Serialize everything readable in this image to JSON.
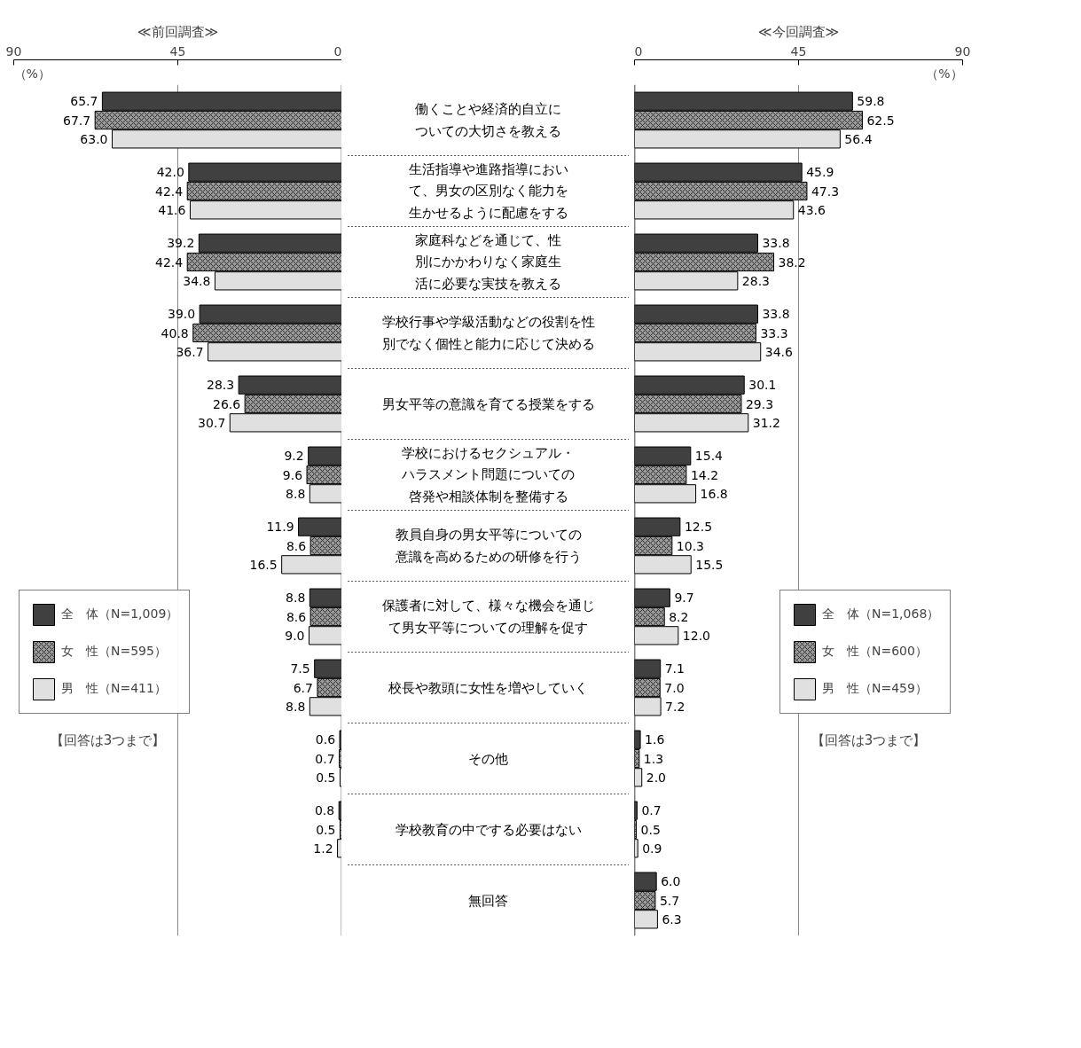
{
  "chart_data": [
    {
      "type": "bar",
      "orientation": "horizontal",
      "title": "≪前回調査≫",
      "xlabel": "（%）",
      "categories": [
        "働くことや経済的自立についての大切さを教える",
        "生活指導や進路指導において、男女の区別なく能力を生かせるように配慮をする",
        "家庭科などを通じて、性別にかかわりなく家庭生活に必要な実技を教える",
        "学校行事や学級活動などの役割を性別でなく個性と能力に応じて決める",
        "男女平等の意識を育てる授業をする",
        "学校におけるセクシュアル・ハラスメント問題についての啓発や相談体制を整備する",
        "教員自身の男女平等についての意識を高めるための研修を行う",
        "保護者に対して、様々な機会を通じて男女平等についての理解を促す",
        "校長や教頭に女性を増やしていく",
        "その他",
        "学校教育の中でする必要はない",
        "無回答"
      ],
      "series": [
        {
          "name": "全　体（N=1,009）",
          "color": "#404040",
          "values": [
            65.7,
            42.0,
            39.2,
            39.0,
            28.3,
            9.2,
            11.9,
            8.8,
            7.5,
            0.6,
            0.8,
            null
          ],
          "value_labels": [
            "65.7",
            "42.0",
            "39.2",
            "39.0",
            "28.3",
            "9.2",
            "11.9",
            "8.8",
            "7.5",
            "0.6",
            "0.8",
            null
          ]
        },
        {
          "name": "女　性（N=595）",
          "color": "#999999",
          "values": [
            67.7,
            42.4,
            42.4,
            40.8,
            26.6,
            9.6,
            8.6,
            8.6,
            6.7,
            0.7,
            0.5,
            null
          ],
          "value_labels": [
            "67.7",
            "42.4",
            "42.4",
            "40.8",
            "26.6",
            "9.6",
            "8.6",
            "8.6",
            "6.7",
            "0.7",
            "0.5",
            null
          ]
        },
        {
          "name": "男　性（N=411）",
          "color": "#e0e0e0",
          "values": [
            63.0,
            41.6,
            34.8,
            36.7,
            30.7,
            8.8,
            16.5,
            9.0,
            8.8,
            0.5,
            1.2,
            null
          ],
          "value_labels": [
            "63.0",
            "41.6",
            "34.8",
            "36.7",
            "30.7",
            "8.8",
            "16.5",
            "9.0",
            "8.8",
            "0.5",
            "1.2",
            null
          ]
        }
      ],
      "xlim": [
        90,
        0
      ],
      "xticks": [
        90,
        45,
        0
      ],
      "grid": "x",
      "legend": "left",
      "annotations": [
        "【回答は3つまで】"
      ]
    },
    {
      "type": "bar",
      "orientation": "horizontal",
      "title": "≪今回調査≫",
      "xlabel": "（%）",
      "categories": [
        "働くことや経済的自立についての大切さを教える",
        "生活指導や進路指導において、男女の区別なく能力を生かせるように配慮をする",
        "家庭科などを通じて、性別にかかわりなく家庭生活に必要な実技を教える",
        "学校行事や学級活動などの役割を性別でなく個性と能力に応じて決める",
        "男女平等の意識を育てる授業をする",
        "学校におけるセクシュアル・ハラスメント問題についての啓発や相談体制を整備する",
        "教員自身の男女平等についての意識を高めるための研修を行う",
        "保護者に対して、様々な機会を通じて男女平等についての理解を促す",
        "校長や教頭に女性を増やしていく",
        "その他",
        "学校教育の中でする必要はない",
        "無回答"
      ],
      "series": [
        {
          "name": "全　体（N=1,068）",
          "color": "#404040",
          "values": [
            59.8,
            45.9,
            33.8,
            33.8,
            30.1,
            15.4,
            12.5,
            9.7,
            7.1,
            1.6,
            0.7,
            6.0
          ],
          "value_labels": [
            "59.8",
            "45.9",
            "33.8",
            "33.8",
            "30.1",
            "15.4",
            "12.5",
            "9.7",
            "7.1",
            "1.6",
            "0.7",
            "6.0"
          ]
        },
        {
          "name": "女　性（N=600）",
          "color": "#999999",
          "values": [
            62.5,
            47.3,
            38.2,
            33.3,
            29.3,
            14.2,
            10.3,
            8.2,
            7.0,
            1.3,
            0.5,
            5.7
          ],
          "value_labels": [
            "62.5",
            "47.3",
            "38.2",
            "33.3",
            "29.3",
            "14.2",
            "10.3",
            "8.2",
            "7.0",
            "1.3",
            "0.5",
            "5.7"
          ]
        },
        {
          "name": "男　性（N=459）",
          "color": "#e0e0e0",
          "values": [
            56.4,
            43.6,
            28.3,
            34.6,
            31.2,
            16.8,
            15.5,
            12.0,
            7.2,
            2.0,
            0.9,
            6.3
          ],
          "value_labels": [
            "56.4",
            "43.6",
            "28.3",
            "34.6",
            "31.2",
            "16.8",
            "15.5",
            "12.0",
            "7.2",
            "2.0",
            "0.9",
            "6.3"
          ]
        }
      ],
      "xlim": [
        0,
        90
      ],
      "xticks": [
        0,
        45,
        90
      ],
      "grid": "x",
      "legend": "right",
      "tick_labels": "x",
      "annotations": [
        "【回答は3つまで】"
      ]
    }
  ]
}
